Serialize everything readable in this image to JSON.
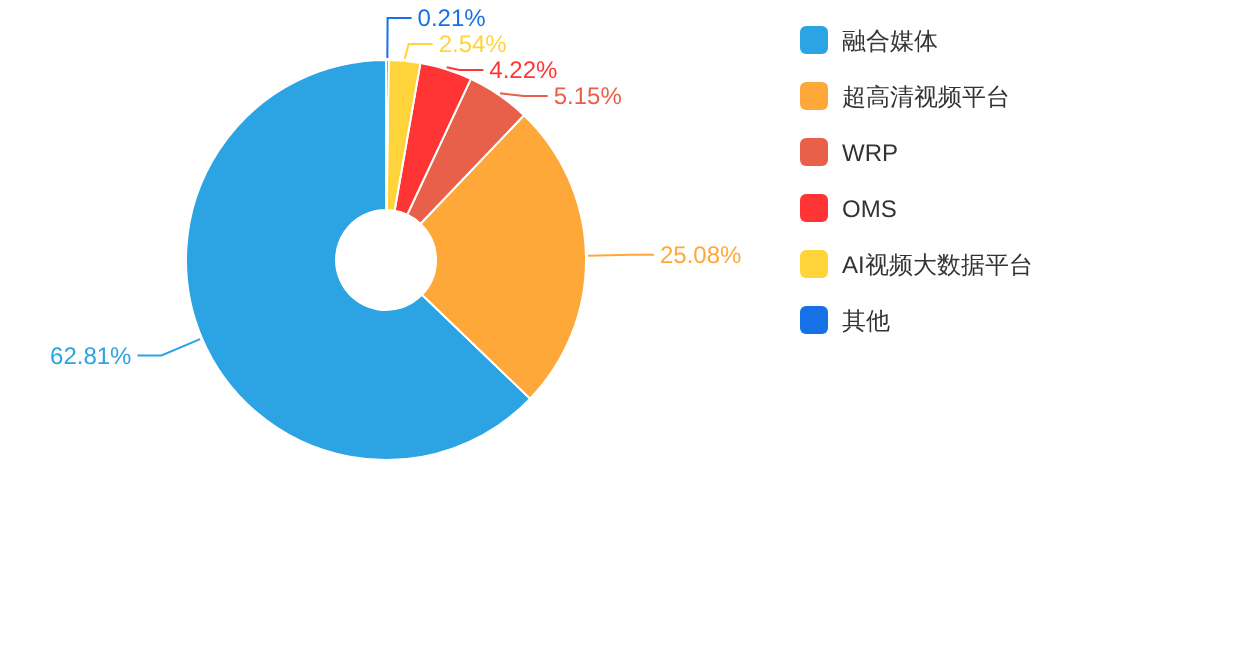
{
  "chart_data": {
    "type": "donut",
    "categories": [
      "融合媒体",
      "超高清视频平台",
      "WRP",
      "OMS",
      "AI视频大数据平台",
      "其他"
    ],
    "values": [
      62.81,
      25.08,
      5.15,
      4.22,
      2.54,
      0.21
    ],
    "colors": [
      "#2ca3e3",
      "#ffa83a",
      "#e8604a",
      "#ff3434",
      "#ffd43a",
      "#1771e6"
    ],
    "value_labels": [
      "62.81%",
      "25.08%",
      "5.15%",
      "4.22%",
      "2.54%",
      "0.21%"
    ],
    "data_labels": true,
    "legend": "right"
  }
}
